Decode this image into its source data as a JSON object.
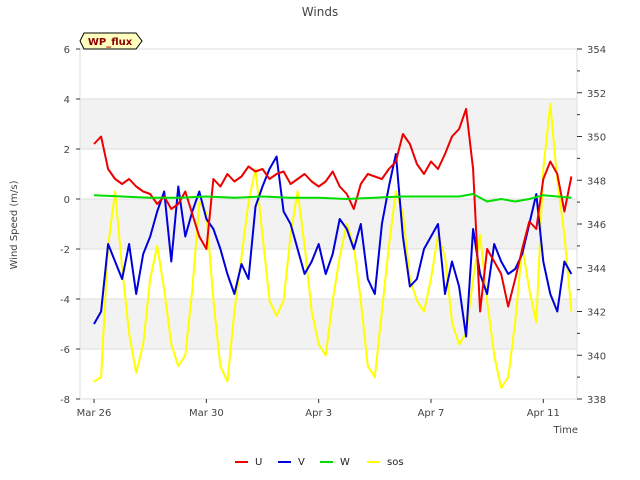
{
  "chart_data": {
    "type": "line",
    "title": "Winds",
    "xlabel": "Time",
    "ylabel": "Wind Speed (m/s)",
    "badge": "WP_flux",
    "x_unit": "days since Mar 26",
    "xlim": [
      -0.5,
      17.2
    ],
    "ylim": [
      -8,
      6
    ],
    "y2lim": [
      338,
      354
    ],
    "xticks": [
      {
        "x": 0,
        "label": "Mar 26"
      },
      {
        "x": 4,
        "label": "Mar 30"
      },
      {
        "x": 8,
        "label": "Apr 3"
      },
      {
        "x": 12,
        "label": "Apr 7"
      },
      {
        "x": 16,
        "label": "Apr 11"
      }
    ],
    "yticks": [
      -8,
      -6,
      -4,
      -2,
      0,
      2,
      4,
      6
    ],
    "y2ticks": [
      338,
      340,
      342,
      344,
      346,
      348,
      350,
      352,
      354
    ],
    "grid": true,
    "legend_position": "bottom-center",
    "series": [
      {
        "name": "U",
        "axis": "left",
        "color": "#ee0000",
        "points": [
          [
            0,
            2.2
          ],
          [
            0.25,
            2.5
          ],
          [
            0.5,
            1.2
          ],
          [
            0.75,
            0.8
          ],
          [
            1,
            0.6
          ],
          [
            1.25,
            0.8
          ],
          [
            1.5,
            0.5
          ],
          [
            1.75,
            0.3
          ],
          [
            2,
            0.2
          ],
          [
            2.25,
            -0.2
          ],
          [
            2.5,
            0.1
          ],
          [
            2.75,
            -0.4
          ],
          [
            3,
            -0.2
          ],
          [
            3.25,
            0.3
          ],
          [
            3.5,
            -0.6
          ],
          [
            3.75,
            -1.5
          ],
          [
            4,
            -2.0
          ],
          [
            4.25,
            0.8
          ],
          [
            4.5,
            0.5
          ],
          [
            4.75,
            1.0
          ],
          [
            5,
            0.7
          ],
          [
            5.25,
            0.9
          ],
          [
            5.5,
            1.3
          ],
          [
            5.75,
            1.1
          ],
          [
            6,
            1.2
          ],
          [
            6.25,
            0.8
          ],
          [
            6.5,
            1.0
          ],
          [
            6.75,
            1.1
          ],
          [
            7,
            0.6
          ],
          [
            7.25,
            0.8
          ],
          [
            7.5,
            1.0
          ],
          [
            7.75,
            0.7
          ],
          [
            8,
            0.5
          ],
          [
            8.25,
            0.7
          ],
          [
            8.5,
            1.1
          ],
          [
            8.75,
            0.5
          ],
          [
            9,
            0.2
          ],
          [
            9.25,
            -0.4
          ],
          [
            9.5,
            0.6
          ],
          [
            9.75,
            1.0
          ],
          [
            10,
            0.9
          ],
          [
            10.25,
            0.8
          ],
          [
            10.5,
            1.2
          ],
          [
            10.75,
            1.5
          ],
          [
            11,
            2.6
          ],
          [
            11.25,
            2.2
          ],
          [
            11.5,
            1.4
          ],
          [
            11.75,
            1.0
          ],
          [
            12,
            1.5
          ],
          [
            12.25,
            1.2
          ],
          [
            12.5,
            1.8
          ],
          [
            12.75,
            2.5
          ],
          [
            13,
            2.8
          ],
          [
            13.25,
            3.6
          ],
          [
            13.5,
            1.2
          ],
          [
            13.75,
            -4.5
          ],
          [
            14,
            -2.0
          ],
          [
            14.25,
            -2.5
          ],
          [
            14.5,
            -3.0
          ],
          [
            14.75,
            -4.3
          ],
          [
            15,
            -3.2
          ],
          [
            15.25,
            -2.0
          ],
          [
            15.5,
            -0.9
          ],
          [
            15.75,
            -1.2
          ],
          [
            16,
            0.8
          ],
          [
            16.25,
            1.5
          ],
          [
            16.5,
            1.0
          ],
          [
            16.75,
            -0.5
          ],
          [
            17,
            0.9
          ]
        ]
      },
      {
        "name": "V",
        "axis": "left",
        "color": "#0000dd",
        "points": [
          [
            0,
            -5.0
          ],
          [
            0.25,
            -4.5
          ],
          [
            0.5,
            -1.8
          ],
          [
            0.75,
            -2.5
          ],
          [
            1,
            -3.2
          ],
          [
            1.25,
            -1.8
          ],
          [
            1.5,
            -3.8
          ],
          [
            1.75,
            -2.2
          ],
          [
            2,
            -1.5
          ],
          [
            2.25,
            -0.5
          ],
          [
            2.5,
            0.3
          ],
          [
            2.75,
            -2.5
          ],
          [
            3,
            0.5
          ],
          [
            3.25,
            -1.5
          ],
          [
            3.5,
            -0.5
          ],
          [
            3.75,
            0.3
          ],
          [
            4,
            -0.8
          ],
          [
            4.25,
            -1.2
          ],
          [
            4.5,
            -2.0
          ],
          [
            4.75,
            -3.0
          ],
          [
            5,
            -3.8
          ],
          [
            5.25,
            -2.6
          ],
          [
            5.5,
            -3.2
          ],
          [
            5.75,
            -0.3
          ],
          [
            6,
            0.5
          ],
          [
            6.25,
            1.2
          ],
          [
            6.5,
            1.7
          ],
          [
            6.75,
            -0.5
          ],
          [
            7,
            -1.0
          ],
          [
            7.25,
            -2.0
          ],
          [
            7.5,
            -3.0
          ],
          [
            7.75,
            -2.5
          ],
          [
            8,
            -1.8
          ],
          [
            8.25,
            -3.0
          ],
          [
            8.5,
            -2.2
          ],
          [
            8.75,
            -0.8
          ],
          [
            9,
            -1.2
          ],
          [
            9.25,
            -2.0
          ],
          [
            9.5,
            -1.0
          ],
          [
            9.75,
            -3.2
          ],
          [
            10,
            -3.8
          ],
          [
            10.25,
            -1.0
          ],
          [
            10.5,
            0.5
          ],
          [
            10.75,
            1.8
          ],
          [
            11,
            -1.5
          ],
          [
            11.25,
            -3.5
          ],
          [
            11.5,
            -3.2
          ],
          [
            11.75,
            -2.0
          ],
          [
            12,
            -1.5
          ],
          [
            12.25,
            -1.0
          ],
          [
            12.5,
            -3.8
          ],
          [
            12.75,
            -2.5
          ],
          [
            13,
            -3.5
          ],
          [
            13.25,
            -5.5
          ],
          [
            13.5,
            -1.2
          ],
          [
            13.75,
            -3.0
          ],
          [
            14,
            -3.8
          ],
          [
            14.25,
            -1.8
          ],
          [
            14.5,
            -2.5
          ],
          [
            14.75,
            -3.0
          ],
          [
            15,
            -2.8
          ],
          [
            15.25,
            -2.2
          ],
          [
            15.5,
            -1.0
          ],
          [
            15.75,
            0.2
          ],
          [
            16,
            -2.5
          ],
          [
            16.25,
            -3.8
          ],
          [
            16.5,
            -4.5
          ],
          [
            16.75,
            -2.5
          ],
          [
            17,
            -3.0
          ]
        ]
      },
      {
        "name": "W",
        "axis": "left",
        "color": "#00dd00",
        "points": [
          [
            0,
            0.15
          ],
          [
            1,
            0.1
          ],
          [
            2,
            0.05
          ],
          [
            3,
            0.05
          ],
          [
            4,
            0.1
          ],
          [
            5,
            0.05
          ],
          [
            6,
            0.1
          ],
          [
            7,
            0.05
          ],
          [
            8,
            0.05
          ],
          [
            9,
            0.0
          ],
          [
            10,
            0.05
          ],
          [
            11,
            0.1
          ],
          [
            12,
            0.1
          ],
          [
            13,
            0.1
          ],
          [
            13.5,
            0.2
          ],
          [
            14,
            -0.1
          ],
          [
            14.5,
            0.0
          ],
          [
            15,
            -0.1
          ],
          [
            15.5,
            0.0
          ],
          [
            16,
            0.15
          ],
          [
            17,
            0.05
          ]
        ]
      },
      {
        "name": "sos",
        "axis": "right",
        "color": "#ffff00",
        "points": [
          [
            0,
            338.8
          ],
          [
            0.25,
            339.0
          ],
          [
            0.5,
            345.0
          ],
          [
            0.75,
            347.5
          ],
          [
            1,
            344.0
          ],
          [
            1.25,
            341.0
          ],
          [
            1.5,
            339.2
          ],
          [
            1.75,
            340.5
          ],
          [
            2,
            343.5
          ],
          [
            2.25,
            345.0
          ],
          [
            2.5,
            343.0
          ],
          [
            2.75,
            340.5
          ],
          [
            3,
            339.5
          ],
          [
            3.25,
            340.0
          ],
          [
            3.5,
            343.0
          ],
          [
            3.75,
            347.0
          ],
          [
            4,
            346.5
          ],
          [
            4.25,
            342.5
          ],
          [
            4.5,
            339.5
          ],
          [
            4.75,
            338.8
          ],
          [
            5,
            342.0
          ],
          [
            5.25,
            344.5
          ],
          [
            5.5,
            347.0
          ],
          [
            5.75,
            348.5
          ],
          [
            6,
            345.5
          ],
          [
            6.25,
            342.5
          ],
          [
            6.5,
            341.8
          ],
          [
            6.75,
            342.5
          ],
          [
            7,
            345.5
          ],
          [
            7.25,
            347.5
          ],
          [
            7.5,
            345.0
          ],
          [
            7.75,
            342.0
          ],
          [
            8,
            340.5
          ],
          [
            8.25,
            340.0
          ],
          [
            8.5,
            342.5
          ],
          [
            8.75,
            344.5
          ],
          [
            9,
            346.0
          ],
          [
            9.25,
            345.0
          ],
          [
            9.5,
            342.5
          ],
          [
            9.75,
            339.5
          ],
          [
            10,
            339.0
          ],
          [
            10.25,
            342.0
          ],
          [
            10.5,
            345.0
          ],
          [
            10.75,
            347.5
          ],
          [
            11,
            346.5
          ],
          [
            11.25,
            343.5
          ],
          [
            11.5,
            342.5
          ],
          [
            11.75,
            342.0
          ],
          [
            12,
            343.5
          ],
          [
            12.25,
            345.5
          ],
          [
            12.5,
            344.5
          ],
          [
            12.75,
            341.5
          ],
          [
            13,
            340.5
          ],
          [
            13.25,
            341.0
          ],
          [
            13.5,
            343.5
          ],
          [
            13.75,
            345.5
          ],
          [
            14,
            342.5
          ],
          [
            14.25,
            340.0
          ],
          [
            14.5,
            338.5
          ],
          [
            14.75,
            339.0
          ],
          [
            15,
            341.5
          ],
          [
            15.25,
            345.0
          ],
          [
            15.5,
            343.0
          ],
          [
            15.75,
            341.5
          ],
          [
            16,
            348.5
          ],
          [
            16.25,
            351.5
          ],
          [
            16.5,
            348.0
          ],
          [
            16.75,
            345.5
          ],
          [
            17,
            342.0
          ]
        ]
      }
    ]
  }
}
